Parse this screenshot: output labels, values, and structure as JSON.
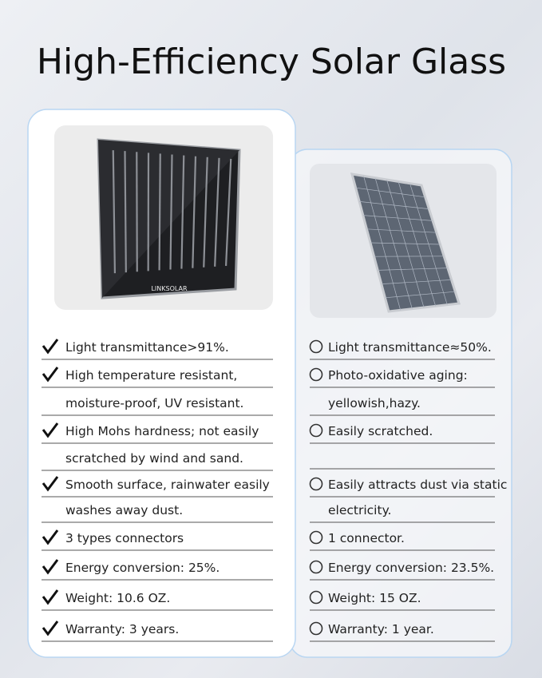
{
  "title": "High-Efficiency Solar Glass",
  "left": {
    "panel_brand": "LINKSOLAR",
    "items": [
      [
        "Light transmittance>91%."
      ],
      [
        "High temperature resistant,",
        "moisture-proof, UV resistant."
      ],
      [
        "High Mohs hardness; not easily",
        "scratched by wind and sand."
      ],
      [
        "Smooth surface, rainwater easily",
        "washes away dust."
      ],
      [
        "3 types connectors"
      ],
      [
        "Energy conversion: 25%."
      ],
      [
        "Weight: 10.6 OZ."
      ],
      [
        "Warranty: 3 years."
      ]
    ]
  },
  "right": {
    "items": [
      [
        "Light transmittance≈50%."
      ],
      [
        "Photo-oxidative aging:",
        "yellowish,hazy."
      ],
      [
        "Easily scratched."
      ],
      [
        "Easily attracts dust via static",
        "electricity."
      ],
      [
        "1 connector."
      ],
      [
        "Energy conversion: 23.5%."
      ],
      [
        "Weight:  15 OZ."
      ],
      [
        "Warranty: 1 year."
      ]
    ]
  }
}
